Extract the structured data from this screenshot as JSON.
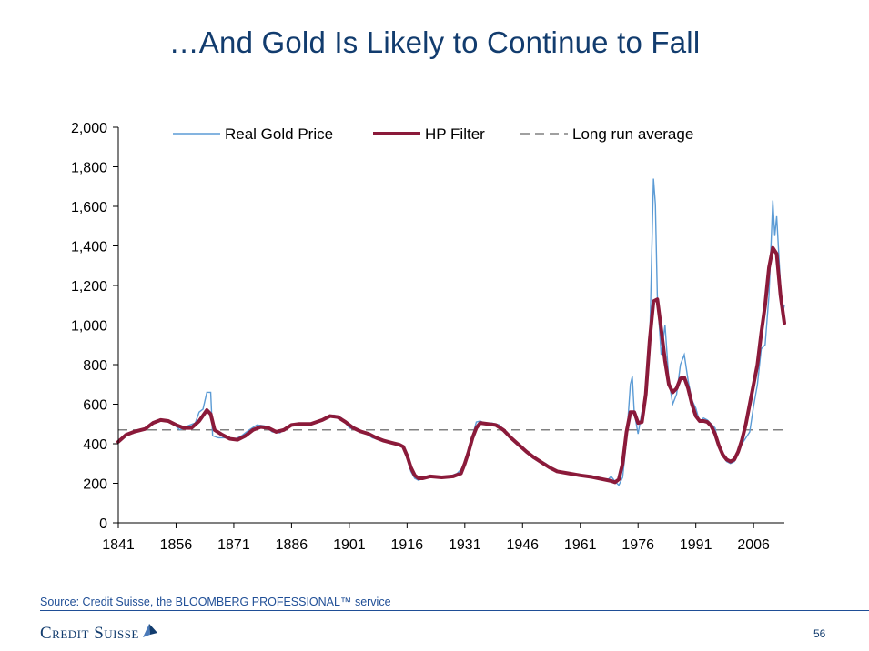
{
  "slide": {
    "title": "…And Gold Is Likely to Continue to Fall",
    "source": "Source: Credit Suisse, the BLOOMBERG PROFESSIONAL™ service",
    "brand": "Credit Suisse",
    "page_number": "56"
  },
  "colors": {
    "title": "#123c6e",
    "real_gold": "#5b9bd5",
    "hp_filter": "#8b1a3a",
    "long_run_average": "#808080",
    "source_text": "#1f4e96"
  },
  "icons": [
    "credit-suisse-sail-logo"
  ],
  "chart_data": {
    "type": "line",
    "title": "",
    "xlabel": "",
    "ylabel": "",
    "xlim": [
      1841,
      2014
    ],
    "ylim": [
      0,
      2000
    ],
    "x_ticks": [
      "1841",
      "1856",
      "1871",
      "1886",
      "1901",
      "1916",
      "1931",
      "1946",
      "1961",
      "1976",
      "1991",
      "2006"
    ],
    "y_ticks": [
      "0",
      "200",
      "400",
      "600",
      "800",
      "1,000",
      "1,200",
      "1,400",
      "1,600",
      "1,800",
      "2,000"
    ],
    "grid": false,
    "legend_position": "top",
    "series": [
      {
        "name": "Real Gold Price",
        "style": "thin-line",
        "points": [
          [
            1841,
            410
          ],
          [
            1843,
            445
          ],
          [
            1845,
            460
          ],
          [
            1847,
            468
          ],
          [
            1849,
            490
          ],
          [
            1851,
            515
          ],
          [
            1853,
            520
          ],
          [
            1855,
            505
          ],
          [
            1857,
            470
          ],
          [
            1859,
            490
          ],
          [
            1861,
            505
          ],
          [
            1862,
            560
          ],
          [
            1863,
            575
          ],
          [
            1864,
            660
          ],
          [
            1865,
            660
          ],
          [
            1865.5,
            440
          ],
          [
            1867,
            430
          ],
          [
            1869,
            430
          ],
          [
            1871,
            420
          ],
          [
            1873,
            440
          ],
          [
            1875,
            470
          ],
          [
            1877,
            495
          ],
          [
            1879,
            490
          ],
          [
            1881,
            460
          ],
          [
            1883,
            455
          ],
          [
            1885,
            490
          ],
          [
            1887,
            500
          ],
          [
            1889,
            500
          ],
          [
            1891,
            505
          ],
          [
            1893,
            515
          ],
          [
            1895,
            530
          ],
          [
            1897,
            545
          ],
          [
            1899,
            530
          ],
          [
            1901,
            480
          ],
          [
            1903,
            470
          ],
          [
            1905,
            455
          ],
          [
            1907,
            430
          ],
          [
            1909,
            420
          ],
          [
            1911,
            405
          ],
          [
            1913,
            400
          ],
          [
            1915,
            380
          ],
          [
            1916,
            330
          ],
          [
            1917,
            260
          ],
          [
            1918,
            225
          ],
          [
            1919,
            215
          ],
          [
            1920,
            225
          ],
          [
            1921,
            235
          ],
          [
            1923,
            235
          ],
          [
            1925,
            235
          ],
          [
            1927,
            235
          ],
          [
            1929,
            250
          ],
          [
            1931,
            290
          ],
          [
            1932,
            380
          ],
          [
            1933,
            440
          ],
          [
            1934,
            510
          ],
          [
            1935,
            515
          ],
          [
            1936,
            505
          ],
          [
            1938,
            505
          ],
          [
            1940,
            495
          ],
          [
            1942,
            450
          ],
          [
            1944,
            410
          ],
          [
            1946,
            380
          ],
          [
            1948,
            350
          ],
          [
            1950,
            320
          ],
          [
            1952,
            300
          ],
          [
            1954,
            270
          ],
          [
            1956,
            255
          ],
          [
            1958,
            245
          ],
          [
            1960,
            240
          ],
          [
            1962,
            235
          ],
          [
            1964,
            230
          ],
          [
            1966,
            225
          ],
          [
            1968,
            215
          ],
          [
            1969,
            235
          ],
          [
            1970,
            210
          ],
          [
            1971,
            190
          ],
          [
            1972,
            230
          ],
          [
            1973,
            420
          ],
          [
            1974,
            700
          ],
          [
            1974.5,
            740
          ],
          [
            1975,
            560
          ],
          [
            1976,
            450
          ],
          [
            1977,
            560
          ],
          [
            1978,
            650
          ],
          [
            1979,
            900
          ],
          [
            1980,
            1740
          ],
          [
            1980.5,
            1610
          ],
          [
            1981,
            1150
          ],
          [
            1982,
            850
          ],
          [
            1983,
            1000
          ],
          [
            1984,
            720
          ],
          [
            1985,
            600
          ],
          [
            1986,
            650
          ],
          [
            1987,
            800
          ],
          [
            1988,
            850
          ],
          [
            1989,
            720
          ],
          [
            1990,
            620
          ],
          [
            1991,
            580
          ],
          [
            1992,
            510
          ],
          [
            1993,
            530
          ],
          [
            1994,
            520
          ],
          [
            1995,
            500
          ],
          [
            1996,
            480
          ],
          [
            1997,
            380
          ],
          [
            1998,
            340
          ],
          [
            1999,
            310
          ],
          [
            2000,
            300
          ],
          [
            2001,
            310
          ],
          [
            2002,
            350
          ],
          [
            2003,
            400
          ],
          [
            2004,
            430
          ],
          [
            2005,
            460
          ],
          [
            2006,
            590
          ],
          [
            2007,
            700
          ],
          [
            2008,
            880
          ],
          [
            2009,
            900
          ],
          [
            2010,
            1150
          ],
          [
            2011,
            1630
          ],
          [
            2011.5,
            1450
          ],
          [
            2012,
            1550
          ],
          [
            2013,
            1200
          ],
          [
            2013.5,
            1050
          ],
          [
            2014,
            1100
          ]
        ]
      },
      {
        "name": "HP Filter",
        "style": "thick-line",
        "points": [
          [
            1841,
            410
          ],
          [
            1843,
            445
          ],
          [
            1845,
            460
          ],
          [
            1848,
            475
          ],
          [
            1850,
            505
          ],
          [
            1852,
            520
          ],
          [
            1854,
            515
          ],
          [
            1856,
            495
          ],
          [
            1858,
            480
          ],
          [
            1860,
            480
          ],
          [
            1862,
            515
          ],
          [
            1864,
            570
          ],
          [
            1865,
            550
          ],
          [
            1866,
            470
          ],
          [
            1868,
            445
          ],
          [
            1870,
            425
          ],
          [
            1872,
            420
          ],
          [
            1874,
            440
          ],
          [
            1876,
            470
          ],
          [
            1878,
            485
          ],
          [
            1880,
            480
          ],
          [
            1882,
            460
          ],
          [
            1884,
            470
          ],
          [
            1886,
            495
          ],
          [
            1888,
            500
          ],
          [
            1891,
            500
          ],
          [
            1894,
            520
          ],
          [
            1896,
            540
          ],
          [
            1898,
            535
          ],
          [
            1900,
            510
          ],
          [
            1902,
            480
          ],
          [
            1904,
            462
          ],
          [
            1906,
            450
          ],
          [
            1908,
            430
          ],
          [
            1910,
            415
          ],
          [
            1912,
            405
          ],
          [
            1914,
            395
          ],
          [
            1915,
            385
          ],
          [
            1916,
            340
          ],
          [
            1917,
            280
          ],
          [
            1918,
            240
          ],
          [
            1919,
            225
          ],
          [
            1920,
            225
          ],
          [
            1922,
            235
          ],
          [
            1925,
            230
          ],
          [
            1928,
            235
          ],
          [
            1930,
            250
          ],
          [
            1931,
            300
          ],
          [
            1932,
            360
          ],
          [
            1933,
            430
          ],
          [
            1934,
            480
          ],
          [
            1935,
            505
          ],
          [
            1937,
            500
          ],
          [
            1939,
            495
          ],
          [
            1941,
            470
          ],
          [
            1943,
            430
          ],
          [
            1945,
            395
          ],
          [
            1947,
            360
          ],
          [
            1949,
            330
          ],
          [
            1951,
            305
          ],
          [
            1953,
            280
          ],
          [
            1955,
            260
          ],
          [
            1958,
            250
          ],
          [
            1961,
            240
          ],
          [
            1964,
            232
          ],
          [
            1967,
            220
          ],
          [
            1969,
            212
          ],
          [
            1970,
            205
          ],
          [
            1971,
            220
          ],
          [
            1972,
            300
          ],
          [
            1973,
            460
          ],
          [
            1974,
            560
          ],
          [
            1975,
            560
          ],
          [
            1976,
            505
          ],
          [
            1977,
            510
          ],
          [
            1978,
            650
          ],
          [
            1979,
            920
          ],
          [
            1980,
            1120
          ],
          [
            1981,
            1130
          ],
          [
            1982,
            980
          ],
          [
            1983,
            820
          ],
          [
            1984,
            700
          ],
          [
            1985,
            660
          ],
          [
            1986,
            680
          ],
          [
            1987,
            730
          ],
          [
            1988,
            735
          ],
          [
            1989,
            680
          ],
          [
            1990,
            600
          ],
          [
            1991,
            540
          ],
          [
            1992,
            515
          ],
          [
            1993,
            515
          ],
          [
            1994,
            510
          ],
          [
            1995,
            490
          ],
          [
            1996,
            450
          ],
          [
            1997,
            390
          ],
          [
            1998,
            345
          ],
          [
            1999,
            320
          ],
          [
            2000,
            310
          ],
          [
            2001,
            320
          ],
          [
            2002,
            360
          ],
          [
            2003,
            420
          ],
          [
            2004,
            500
          ],
          [
            2005,
            600
          ],
          [
            2006,
            700
          ],
          [
            2007,
            800
          ],
          [
            2008,
            960
          ],
          [
            2009,
            1100
          ],
          [
            2010,
            1290
          ],
          [
            2011,
            1390
          ],
          [
            2012,
            1360
          ],
          [
            2013,
            1150
          ],
          [
            2014,
            1010
          ]
        ]
      },
      {
        "name": "Long run average",
        "style": "dashed",
        "points": [
          [
            1841,
            470
          ],
          [
            2014,
            470
          ]
        ]
      }
    ]
  }
}
